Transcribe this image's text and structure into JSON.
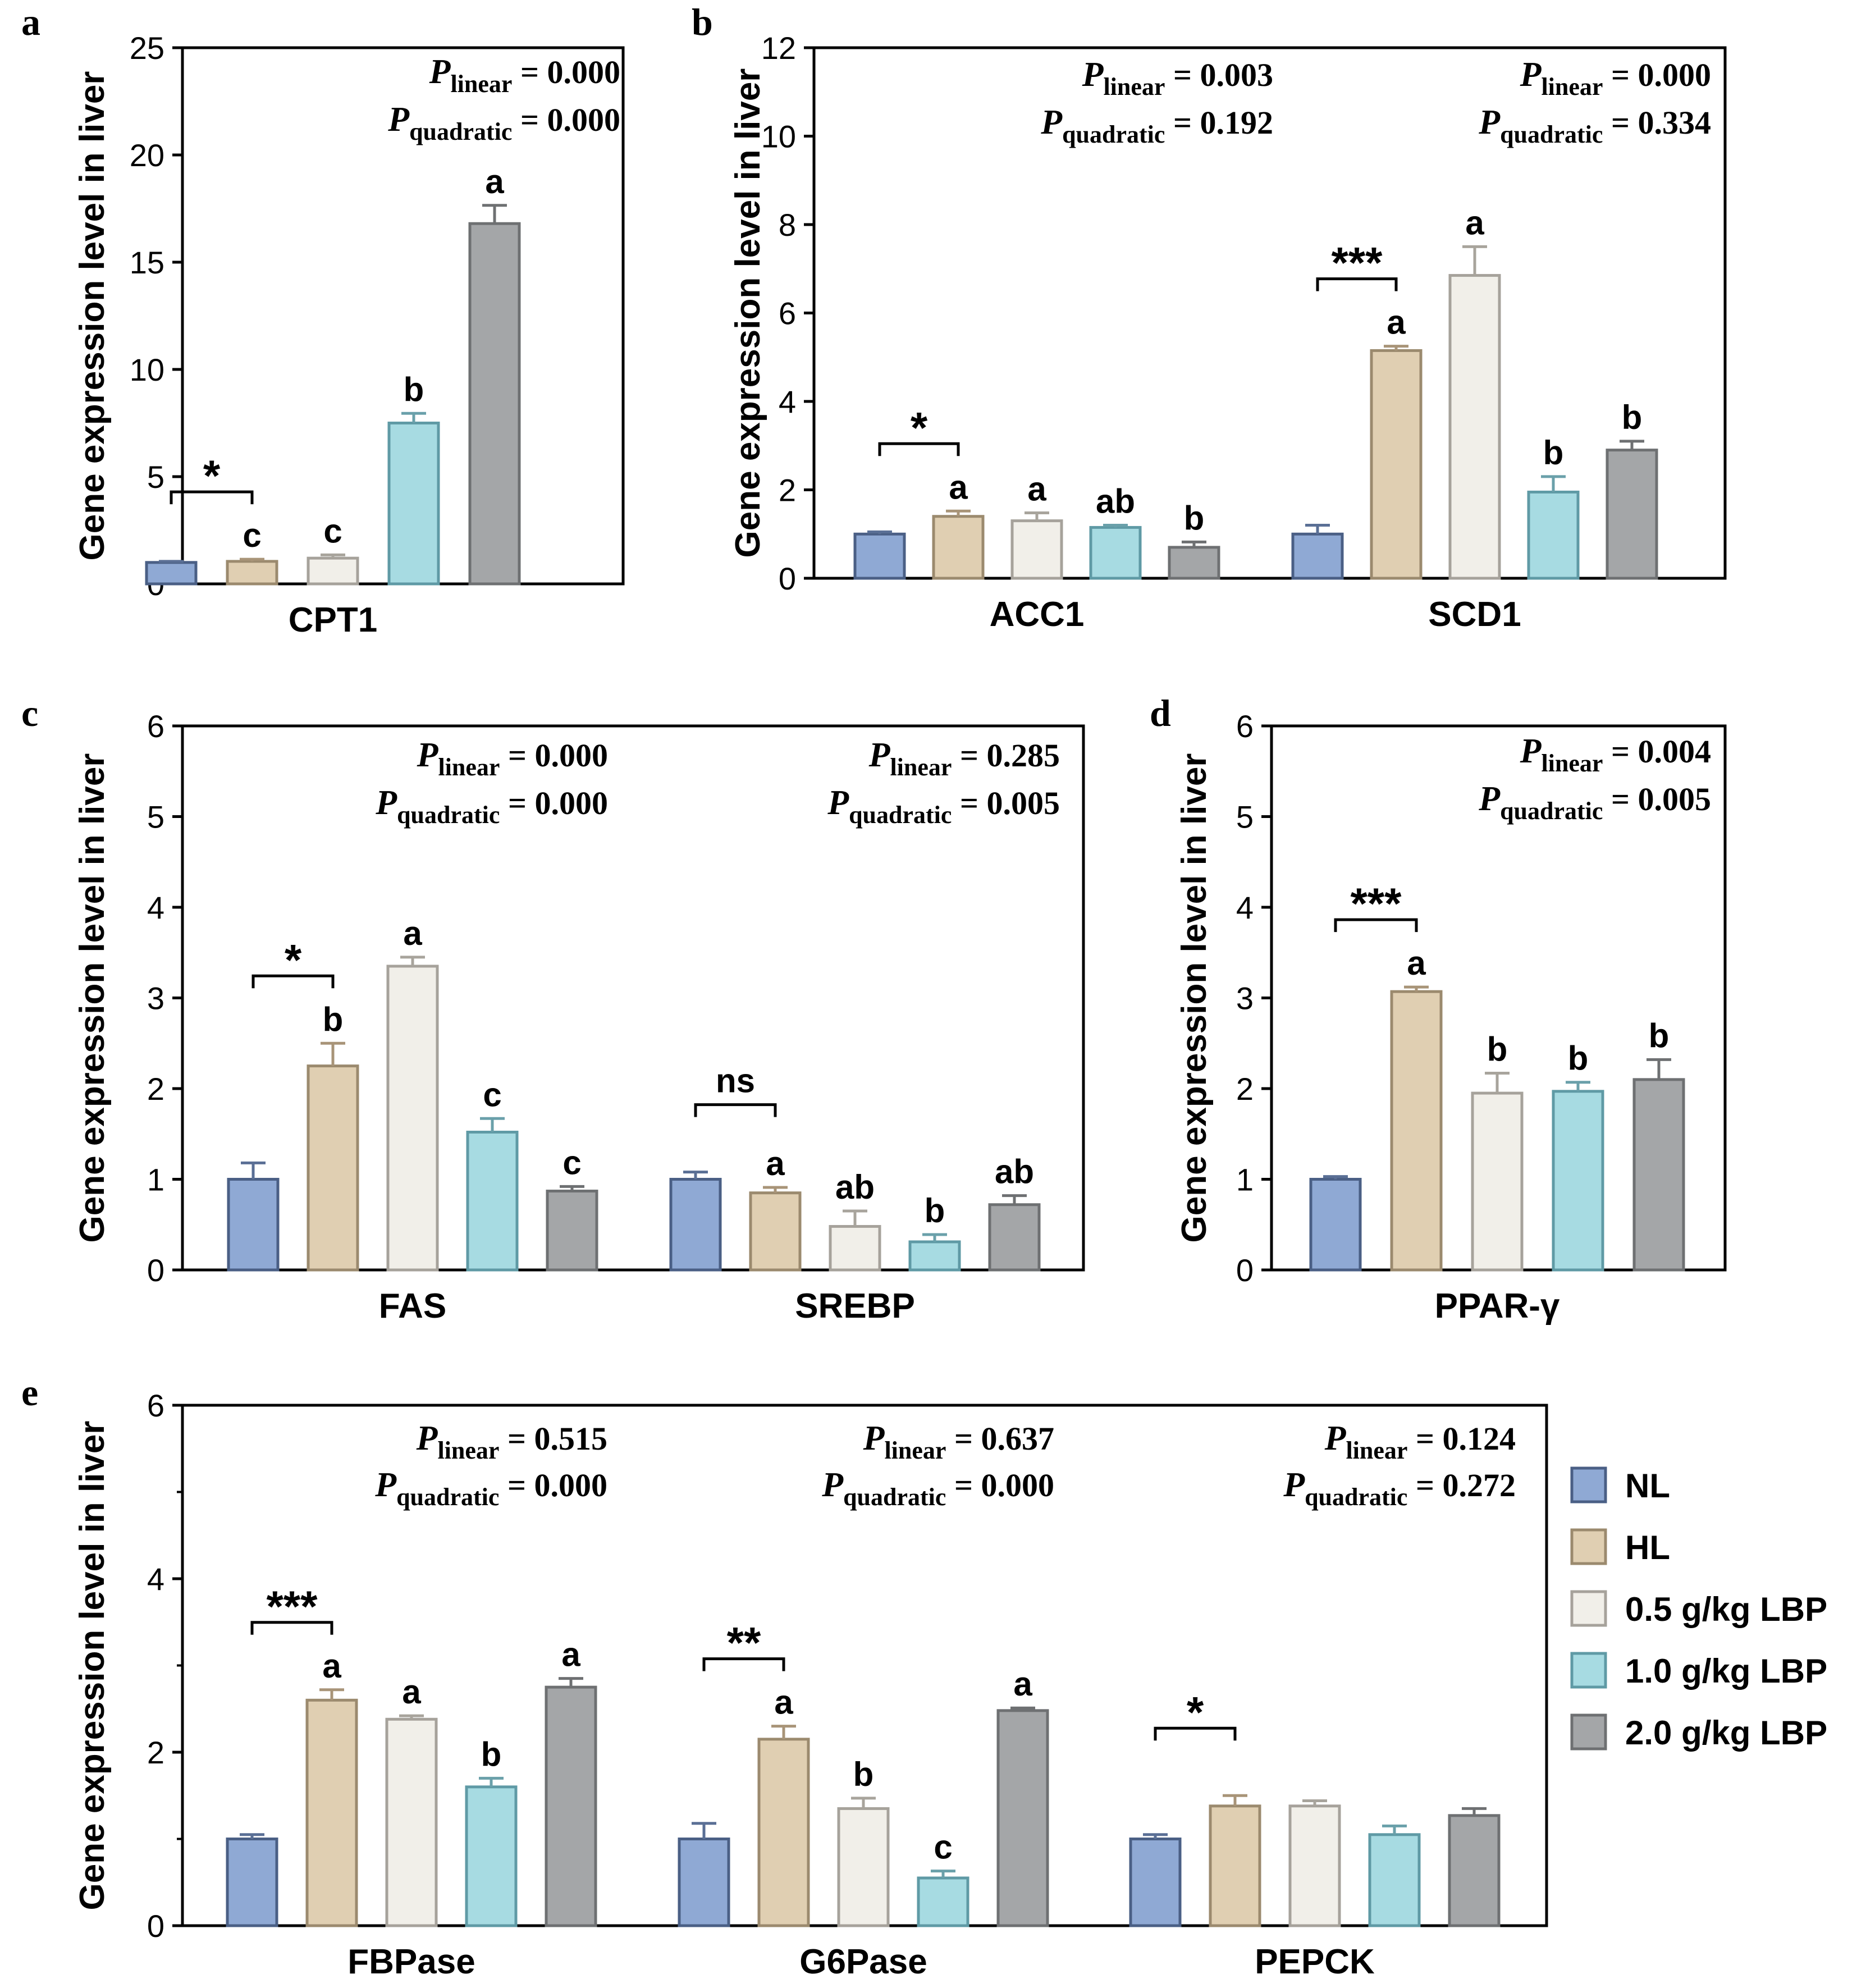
{
  "colors": {
    "NL": {
      "fill": "#8fa9d4",
      "stroke": "#4a5f85",
      "err": "#5a6f95"
    },
    "HL": {
      "fill": "#e0cfb2",
      "stroke": "#9b8a6e",
      "err": "#a89478"
    },
    "L05": {
      "fill": "#f1efe9",
      "stroke": "#a6a29b",
      "err": "#a8a49c"
    },
    "L10": {
      "fill": "#a7dbe2",
      "stroke": "#5f9aa5",
      "err": "#6aa0aa"
    },
    "L20": {
      "fill": "#a4a6a8",
      "stroke": "#6e7072",
      "err": "#6e7072"
    },
    "axis": "#000000"
  },
  "legend": {
    "items": [
      {
        "key": "NL",
        "label": "NL"
      },
      {
        "key": "HL",
        "label": "HL"
      },
      {
        "key": "L05",
        "label": "0.5 g/kg LBP"
      },
      {
        "key": "L10",
        "label": "1.0 g/kg LBP"
      },
      {
        "key": "L20",
        "label": "2.0 g/kg LBP"
      }
    ]
  },
  "chart_data": [
    {
      "panel": "a",
      "type": "bar",
      "ylabel": "Gene expression level in liver",
      "ylim": [
        0,
        25
      ],
      "yticks": [
        0,
        5,
        10,
        15,
        20,
        25
      ],
      "minor_ticks": false,
      "series_order": [
        "NL",
        "HL",
        "L05",
        "L10",
        "L20"
      ],
      "groups": [
        {
          "name": "CPT1",
          "values": [
            1.0,
            1.05,
            1.2,
            7.5,
            16.8
          ],
          "errors": [
            0.05,
            0.1,
            0.15,
            0.45,
            0.85
          ],
          "letters": [
            "",
            "c",
            "c",
            "b",
            "a"
          ],
          "sig": {
            "text": "*",
            "from": 0,
            "to": 1
          },
          "p_linear": "0.000",
          "p_quadratic": "0.000"
        }
      ]
    },
    {
      "panel": "b",
      "type": "bar",
      "ylabel": "Gene expression level in liver",
      "ylim": [
        0,
        12
      ],
      "yticks": [
        0,
        2,
        4,
        6,
        8,
        10,
        12
      ],
      "minor_ticks": false,
      "series_order": [
        "NL",
        "HL",
        "L05",
        "L10",
        "L20"
      ],
      "groups": [
        {
          "name": "ACC1",
          "values": [
            1.0,
            1.4,
            1.3,
            1.15,
            0.7
          ],
          "errors": [
            0.05,
            0.12,
            0.18,
            0.05,
            0.12
          ],
          "letters": [
            "",
            "a",
            "a",
            "ab",
            "b"
          ],
          "sig": {
            "text": "*",
            "from": 0,
            "to": 1
          },
          "p_linear": "0.003",
          "p_quadratic": "0.192"
        },
        {
          "name": "SCD1",
          "values": [
            1.0,
            5.15,
            6.85,
            1.95,
            2.9
          ],
          "errors": [
            0.2,
            0.1,
            0.65,
            0.35,
            0.2
          ],
          "letters": [
            "",
            "a",
            "a",
            "b",
            "b"
          ],
          "sig": {
            "text": "***",
            "from": 0,
            "to": 1
          },
          "p_linear": "0.000",
          "p_quadratic": "0.334"
        }
      ]
    },
    {
      "panel": "c",
      "type": "bar",
      "ylabel": "Gene expression level in liver",
      "ylim": [
        0,
        6
      ],
      "yticks": [
        0,
        1,
        2,
        3,
        4,
        5,
        6
      ],
      "minor_ticks": false,
      "series_order": [
        "NL",
        "HL",
        "L05",
        "L10",
        "L20"
      ],
      "groups": [
        {
          "name": "FAS",
          "values": [
            1.0,
            2.25,
            3.35,
            1.52,
            0.87
          ],
          "errors": [
            0.18,
            0.25,
            0.1,
            0.15,
            0.05
          ],
          "letters": [
            "",
            "b",
            "a",
            "c",
            "c"
          ],
          "sig": {
            "text": "*",
            "from": 0,
            "to": 1
          },
          "p_linear": "0.000",
          "p_quadratic": "0.000"
        },
        {
          "name": "SREBP",
          "values": [
            1.0,
            0.85,
            0.48,
            0.31,
            0.72
          ],
          "errors": [
            0.08,
            0.06,
            0.17,
            0.08,
            0.1
          ],
          "letters": [
            "",
            "a",
            "ab",
            "b",
            "ab"
          ],
          "sig": {
            "text": "ns",
            "from": 0,
            "to": 1
          },
          "p_linear": "0.285",
          "p_quadratic": "0.005"
        }
      ]
    },
    {
      "panel": "d",
      "type": "bar",
      "ylabel": "Gene expression level in liver",
      "ylim": [
        0,
        6
      ],
      "yticks": [
        0,
        1,
        2,
        3,
        4,
        5,
        6
      ],
      "minor_ticks": false,
      "series_order": [
        "NL",
        "HL",
        "L05",
        "L10",
        "L20"
      ],
      "groups": [
        {
          "name": "PPAR-γ",
          "values": [
            1.0,
            3.07,
            1.95,
            1.97,
            2.1
          ],
          "errors": [
            0.03,
            0.05,
            0.22,
            0.1,
            0.22
          ],
          "letters": [
            "",
            "a",
            "b",
            "b",
            "b"
          ],
          "sig": {
            "text": "***",
            "from": 0,
            "to": 1
          },
          "p_linear": "0.004",
          "p_quadratic": "0.005"
        }
      ]
    },
    {
      "panel": "e",
      "type": "bar",
      "ylabel": "Gene expression level in liver",
      "ylim": [
        0,
        6
      ],
      "yticks": [
        0,
        2,
        4,
        6
      ],
      "minor_ticks": true,
      "series_order": [
        "NL",
        "HL",
        "L05",
        "L10",
        "L20"
      ],
      "groups": [
        {
          "name": "FBPase",
          "values": [
            1.0,
            2.6,
            2.38,
            1.6,
            2.75
          ],
          "errors": [
            0.05,
            0.12,
            0.04,
            0.1,
            0.1
          ],
          "letters": [
            "",
            "a",
            "a",
            "b",
            "a"
          ],
          "sig": {
            "text": "***",
            "from": 0,
            "to": 1
          },
          "p_linear": "0.515",
          "p_quadratic": "0.000"
        },
        {
          "name": "G6Pase",
          "values": [
            1.0,
            2.15,
            1.35,
            0.55,
            2.48
          ],
          "errors": [
            0.18,
            0.15,
            0.12,
            0.08,
            0.03
          ],
          "letters": [
            "",
            "a",
            "b",
            "c",
            "a"
          ],
          "sig": {
            "text": "**",
            "from": 0,
            "to": 1
          },
          "p_linear": "0.637",
          "p_quadratic": "0.000"
        },
        {
          "name": "PEPCK",
          "values": [
            1.0,
            1.38,
            1.38,
            1.05,
            1.27
          ],
          "errors": [
            0.05,
            0.12,
            0.06,
            0.1,
            0.08
          ],
          "letters": [
            "",
            "",
            "",
            "",
            ""
          ],
          "sig": {
            "text": "*",
            "from": 0,
            "to": 1
          },
          "p_linear": "0.124",
          "p_quadratic": "0.272"
        }
      ]
    }
  ],
  "p_text": {
    "symbol": "P",
    "linear_sub": "linear",
    "quadratic_sub": "quadratic",
    "eq": " = "
  }
}
